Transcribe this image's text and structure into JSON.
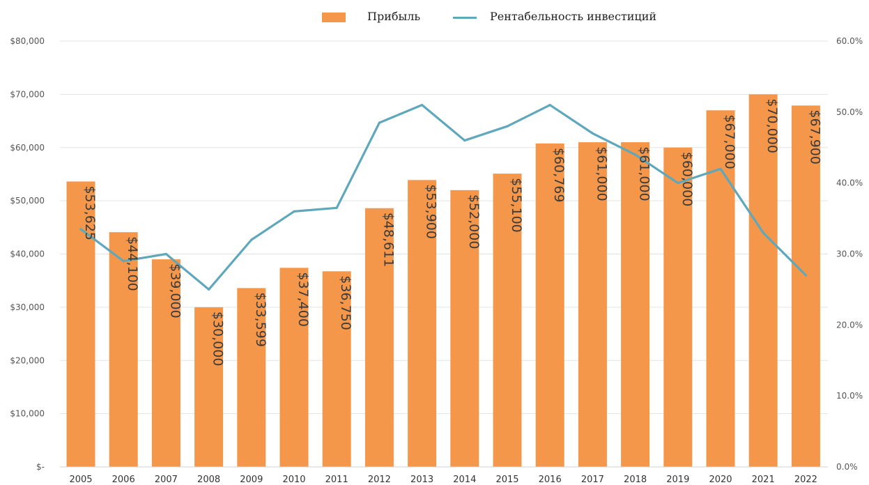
{
  "chart_data": {
    "type": "bar",
    "categories": [
      "2005",
      "2006",
      "2007",
      "2008",
      "2009",
      "2010",
      "2011",
      "2012",
      "2013",
      "2014",
      "2015",
      "2016",
      "2017",
      "2018",
      "2019",
      "2020",
      "2021",
      "2022"
    ],
    "series": [
      {
        "name": "Прибыль",
        "kind": "bar",
        "axis": "left",
        "color": "#F4974A",
        "values": [
          53625,
          44100,
          39000,
          30000,
          33599,
          37400,
          36750,
          48611,
          53900,
          52000,
          55100,
          60769,
          61000,
          61000,
          60000,
          67000,
          70000,
          67900
        ],
        "data_labels": [
          "$53,625",
          "$44,100",
          "$39,000",
          "$30,000",
          "$33,599",
          "$37,400",
          "$36,750",
          "$48,611",
          "$53,900",
          "$52,000",
          "$55,100",
          "$60,769",
          "$61,000",
          "$61,000",
          "$60,000",
          "$67,000",
          "$70,000",
          "$67,900"
        ]
      },
      {
        "name": "Рентабельность инвестиций",
        "kind": "line",
        "axis": "right",
        "color": "#5FA8BC",
        "values": [
          33.5,
          29.0,
          30.0,
          25.0,
          32.0,
          36.0,
          36.5,
          48.5,
          51.0,
          46.0,
          48.0,
          51.0,
          47.0,
          44.0,
          40.0,
          42.0,
          33.0,
          27.0
        ]
      }
    ],
    "y_left": {
      "ylim": [
        0,
        80000
      ],
      "ticks": [
        0,
        10000,
        20000,
        30000,
        40000,
        50000,
        60000,
        70000,
        80000
      ],
      "tick_labels": [
        "$-",
        "$10,000",
        "$20,000",
        "$30,000",
        "$40,000",
        "$50,000",
        "$60,000",
        "$70,000",
        "$80,000"
      ]
    },
    "y_right": {
      "ylim": [
        0,
        60
      ],
      "ticks": [
        0,
        10,
        20,
        30,
        40,
        50,
        60
      ],
      "tick_labels": [
        "0.0%",
        "10.0%",
        "20.0%",
        "30.0%",
        "40.0%",
        "50.0%",
        "60.0%"
      ]
    },
    "grid": true,
    "legend_position": "top-center"
  }
}
